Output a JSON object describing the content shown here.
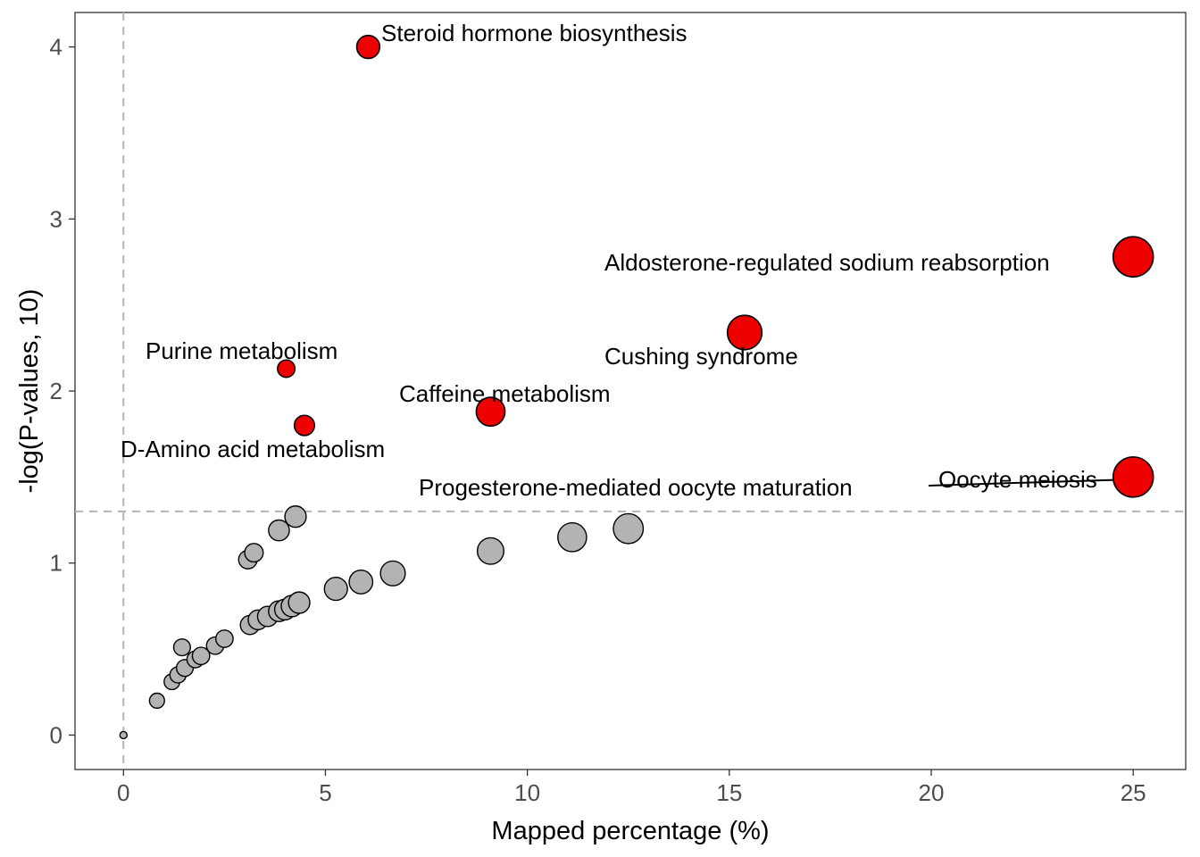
{
  "chart_data": {
    "type": "scatter",
    "title": "",
    "xlabel": "Mapped percentage (%)",
    "ylabel": "-log(P-values, 10)",
    "xlim": [
      -1.2,
      26.3
    ],
    "ylim": [
      -0.2,
      4.2
    ],
    "xticks": [
      "0",
      "5",
      "10",
      "15",
      "20",
      "25"
    ],
    "yticks": [
      "0",
      "1",
      "2",
      "3",
      "4"
    ],
    "reference_lines": {
      "x": 0,
      "y": 1.3,
      "style": "dashed",
      "color": "#b3b3b3"
    },
    "grid": false,
    "legend": "none",
    "colors": {
      "significant": "#ee0000",
      "not_significant": "#b3b3b3",
      "outline": "#000000"
    },
    "significant_points": [
      {
        "label": "Steroid hormone biosynthesis",
        "x": 6.06,
        "y": 4.0,
        "size": 2
      },
      {
        "label": "Aldosterone-regulated sodium reabsorption",
        "x": 25.0,
        "y": 2.78,
        "size": 5
      },
      {
        "label": "Cushing syndrome",
        "x": 15.38,
        "y": 2.34,
        "size": 4
      },
      {
        "label": "Purine metabolism",
        "x": 4.03,
        "y": 2.13,
        "size": 1
      },
      {
        "label": "Caffeine metabolism",
        "x": 9.09,
        "y": 1.88,
        "size": 3
      },
      {
        "label": "D-Amino acid metabolism",
        "x": 4.48,
        "y": 1.8,
        "size": 1.5
      },
      {
        "label": "Progesterone-mediated oocyte maturation",
        "x": 25.0,
        "y": 1.5,
        "size": 5
      },
      {
        "label": "Oocyte meiosis",
        "x": 25.0,
        "y": 1.5,
        "size": 5
      }
    ],
    "other_points": [
      {
        "x": 0.0,
        "y": 0.0,
        "size": 0
      },
      {
        "x": 0.83,
        "y": 0.2,
        "size": 0.6
      },
      {
        "x": 1.2,
        "y": 0.31,
        "size": 0.7
      },
      {
        "x": 1.35,
        "y": 0.35,
        "size": 0.8
      },
      {
        "x": 1.45,
        "y": 0.51,
        "size": 0.9
      },
      {
        "x": 1.52,
        "y": 0.39,
        "size": 0.9
      },
      {
        "x": 1.78,
        "y": 0.44,
        "size": 0.9
      },
      {
        "x": 1.92,
        "y": 0.46,
        "size": 1
      },
      {
        "x": 2.27,
        "y": 0.52,
        "size": 1
      },
      {
        "x": 2.5,
        "y": 0.56,
        "size": 1
      },
      {
        "x": 3.08,
        "y": 1.02,
        "size": 1.2
      },
      {
        "x": 3.23,
        "y": 1.06,
        "size": 1.2
      },
      {
        "x": 3.13,
        "y": 0.64,
        "size": 1.3
      },
      {
        "x": 3.33,
        "y": 0.67,
        "size": 1.4
      },
      {
        "x": 3.57,
        "y": 0.69,
        "size": 1.5
      },
      {
        "x": 3.85,
        "y": 0.72,
        "size": 1.6
      },
      {
        "x": 4.0,
        "y": 0.73,
        "size": 1.6
      },
      {
        "x": 4.17,
        "y": 0.75,
        "size": 1.7
      },
      {
        "x": 4.35,
        "y": 0.77,
        "size": 1.7
      },
      {
        "x": 3.85,
        "y": 1.19,
        "size": 1.6
      },
      {
        "x": 4.26,
        "y": 1.27,
        "size": 1.7
      },
      {
        "x": 5.26,
        "y": 0.85,
        "size": 2
      },
      {
        "x": 5.88,
        "y": 0.89,
        "size": 2.1
      },
      {
        "x": 6.67,
        "y": 0.94,
        "size": 2.3
      },
      {
        "x": 9.09,
        "y": 1.07,
        "size": 2.6
      },
      {
        "x": 11.11,
        "y": 1.15,
        "size": 3
      },
      {
        "x": 12.5,
        "y": 1.2,
        "size": 3.2
      }
    ]
  }
}
